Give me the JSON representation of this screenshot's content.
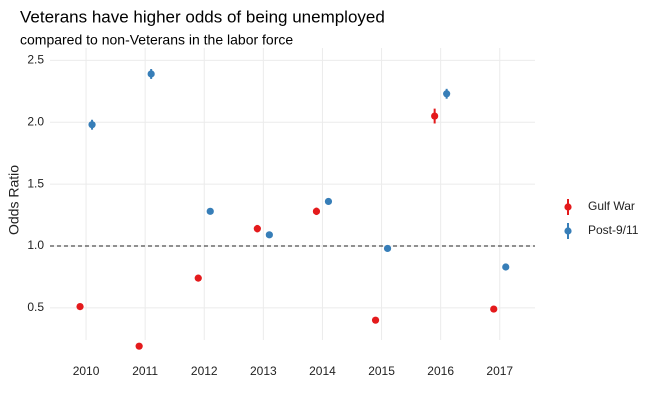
{
  "chart_data": {
    "type": "pointrange",
    "title": "Veterans have higher odds of being unemployed",
    "subtitle": "compared to non-Veterans in the labor force",
    "y_label": "Odds Ratio",
    "categories": [
      "2010",
      "2011",
      "2012",
      "2013",
      "2014",
      "2015",
      "2016",
      "2017"
    ],
    "series": [
      {
        "name": "Gulf War",
        "color": "#e41a1c",
        "values": [
          0.51,
          0.19,
          0.74,
          1.14,
          1.28,
          0.4,
          2.05,
          0.49
        ],
        "errors": [
          0.02,
          0.02,
          0.02,
          0.03,
          0.03,
          0.02,
          0.06,
          0.02
        ]
      },
      {
        "name": "Post-9/11",
        "color": "#377eb8",
        "values": [
          1.98,
          2.39,
          1.28,
          1.09,
          1.36,
          0.98,
          2.23,
          0.83
        ],
        "errors": [
          0.04,
          0.04,
          0.02,
          0.02,
          0.02,
          0.02,
          0.04,
          0.02
        ]
      }
    ],
    "ylim": [
      0.24,
      2.6
    ],
    "yticks": [
      0.5,
      {
        "value": 1,
        "label": "1.0"
      },
      1.5,
      {
        "value": 2,
        "label": "2.0"
      },
      2.5
    ],
    "reference_line": 1,
    "grid": true,
    "legend_position": "right"
  }
}
